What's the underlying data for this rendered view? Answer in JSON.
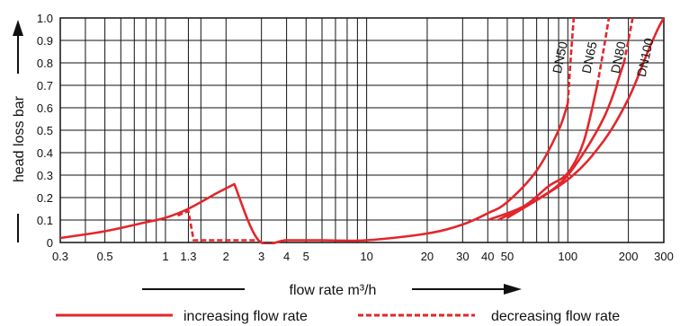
{
  "chart_data": {
    "type": "line",
    "xscale": "log",
    "xlim": [
      0.3,
      300
    ],
    "ylim": [
      0,
      1.0
    ],
    "grid": true,
    "xlabel": "flow rate m³/h",
    "ylabel": "head loss bar",
    "xticks": [
      {
        "value": 0.3,
        "label": "0.3"
      },
      {
        "value": 0.5,
        "label": "0.5"
      },
      {
        "value": 1,
        "label": "1"
      },
      {
        "value": 1.3,
        "label": "1.3"
      },
      {
        "value": 2,
        "label": "2"
      },
      {
        "value": 3,
        "label": "3"
      },
      {
        "value": 4,
        "label": "4"
      },
      {
        "value": 5,
        "label": "5"
      },
      {
        "value": 10,
        "label": "10"
      },
      {
        "value": 20,
        "label": "20"
      },
      {
        "value": 30,
        "label": "30"
      },
      {
        "value": 40,
        "label": "40"
      },
      {
        "value": 50,
        "label": "50"
      },
      {
        "value": 100,
        "label": "100"
      },
      {
        "value": 200,
        "label": "200"
      },
      {
        "value": 300,
        "label": "300"
      }
    ],
    "yticks": [
      {
        "value": 0,
        "label": "0"
      },
      {
        "value": 0.1,
        "label": "0.1"
      },
      {
        "value": 0.2,
        "label": "0.2"
      },
      {
        "value": 0.3,
        "label": "0.3"
      },
      {
        "value": 0.4,
        "label": "0.4"
      },
      {
        "value": 0.5,
        "label": "0.5"
      },
      {
        "value": 0.6,
        "label": "0.6"
      },
      {
        "value": 0.7,
        "label": "0.7"
      },
      {
        "value": 0.8,
        "label": "0.8"
      },
      {
        "value": 0.9,
        "label": "0.9"
      },
      {
        "value": 1.0,
        "label": "1.0"
      }
    ],
    "x_gridlines": [
      0.4,
      0.6,
      0.7,
      0.8,
      0.9,
      1.5,
      6,
      7,
      8,
      9,
      60,
      70,
      80,
      90
    ],
    "legend": {
      "position": "bottom",
      "entries": [
        {
          "label": "increasing flow rate",
          "style": "solid"
        },
        {
          "label": "decreasing flow rate",
          "style": "dashed"
        }
      ]
    },
    "series": [
      {
        "style": "solid",
        "color": "#e3262b",
        "points": [
          [
            0.3,
            0.02
          ],
          [
            0.5,
            0.05
          ],
          [
            0.8,
            0.09
          ],
          [
            1,
            0.11
          ],
          [
            1.3,
            0.15
          ],
          [
            1.8,
            0.22
          ],
          [
            2.2,
            0.26
          ],
          [
            2.9,
            0.01
          ],
          [
            4,
            0.01
          ],
          [
            6,
            0.01
          ],
          [
            10,
            0.01
          ],
          [
            20,
            0.04
          ],
          [
            30,
            0.08
          ],
          [
            40,
            0.13
          ],
          [
            50,
            0.18
          ],
          [
            70,
            0.32
          ],
          [
            90,
            0.5
          ],
          [
            100,
            0.62
          ]
        ]
      },
      {
        "style": "dashed",
        "color": "#e3262b",
        "points": [
          [
            1.15,
            0.12
          ],
          [
            1.3,
            0.14
          ],
          [
            1.38,
            0.01
          ],
          [
            2.9,
            0.01
          ]
        ]
      },
      {
        "name": "DN50",
        "style": "dashed",
        "color": "#e3262b",
        "points": [
          [
            100,
            0.62
          ],
          [
            103,
            0.8
          ],
          [
            107,
            1.0
          ]
        ]
      },
      {
        "name": "DN65",
        "style": "solid",
        "color": "#e3262b",
        "points": [
          [
            40,
            0.1
          ],
          [
            60,
            0.16
          ],
          [
            80,
            0.25
          ],
          [
            100,
            0.31
          ],
          [
            120,
            0.45
          ],
          [
            140,
            0.7
          ]
        ]
      },
      {
        "name": "DN65",
        "style": "dashed",
        "color": "#e3262b",
        "points": [
          [
            140,
            0.7
          ],
          [
            150,
            0.85
          ],
          [
            160,
            1.0
          ]
        ]
      },
      {
        "name": "DN80",
        "style": "solid",
        "color": "#e3262b",
        "points": [
          [
            45,
            0.1
          ],
          [
            70,
            0.19
          ],
          [
            100,
            0.3
          ],
          [
            150,
            0.55
          ],
          [
            190,
            0.8
          ]
        ]
      },
      {
        "name": "DN80",
        "style": "dashed",
        "color": "#e3262b",
        "points": [
          [
            190,
            0.8
          ],
          [
            200,
            0.9
          ],
          [
            210,
            1.0
          ]
        ]
      },
      {
        "name": "DN100",
        "style": "solid",
        "color": "#e3262b",
        "points": [
          [
            50,
            0.11
          ],
          [
            100,
            0.28
          ],
          [
            150,
            0.45
          ],
          [
            200,
            0.64
          ],
          [
            250,
            0.85
          ],
          [
            280,
            0.95
          ],
          [
            300,
            1.0
          ]
        ]
      }
    ]
  }
}
